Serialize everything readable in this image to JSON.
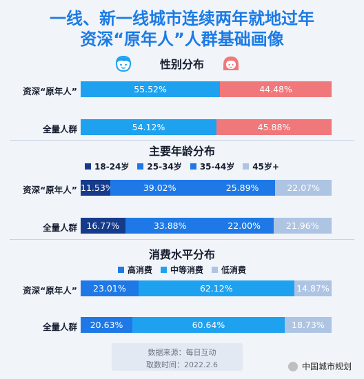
{
  "title_line1": "一线、新一线城市连续两年就地过年",
  "title_line2": "资深“原年人”人群基础画像",
  "colors": {
    "male": "#1ea2f0",
    "female": "#f0787b",
    "dark": "#163b8b",
    "mid": "#1ea2f0",
    "blue": "#1e79e6",
    "light": "#aec4e3"
  },
  "icons": [
    "boy-face-icon",
    "girl-face-icon"
  ],
  "footer": {
    "source": "数据来源：每日互动",
    "date": "取数时间：2022.2.6"
  },
  "watermark_text": "中国城市规划",
  "chart_data": [
    {
      "type": "bar",
      "stacked": true,
      "orientation": "horizontal",
      "title": "性别分布",
      "categories": [
        "资深“原年人”",
        "全量人群"
      ],
      "series": [
        {
          "values": [
            55.52,
            54.12
          ],
          "labels": [
            "55.52%",
            "54.12%"
          ],
          "color": "#1ea2f0"
        },
        {
          "values": [
            44.48,
            45.88
          ],
          "labels": [
            "44.48%",
            "45.88%"
          ],
          "color": "#f0787b"
        }
      ]
    },
    {
      "type": "bar",
      "stacked": true,
      "orientation": "horizontal",
      "title": "主要年龄分布",
      "categories": [
        "资深“原年人”",
        "全量人群"
      ],
      "legend_position": "top",
      "series": [
        {
          "name": "18-24岁",
          "values": [
            11.53,
            16.77
          ],
          "labels": [
            "11.53%",
            "16.77%"
          ],
          "color": "#163b8b"
        },
        {
          "name": "25-34岁",
          "values": [
            39.02,
            33.88
          ],
          "labels": [
            "39.02%",
            "33.88%"
          ],
          "color": "#1e79e6"
        },
        {
          "name": "35-44岁",
          "values": [
            25.89,
            22.0
          ],
          "labels": [
            "25.89%",
            "22.00%"
          ],
          "color": "#1e79e6"
        },
        {
          "name": "45岁+",
          "values": [
            22.07,
            21.96
          ],
          "labels": [
            "22.07%",
            "21.96%"
          ],
          "color": "#aec4e3"
        }
      ]
    },
    {
      "type": "bar",
      "stacked": true,
      "orientation": "horizontal",
      "title": "消费水平分布",
      "categories": [
        "资深“原年人”",
        "全量人群"
      ],
      "legend_position": "top",
      "series": [
        {
          "name": "高消费",
          "values": [
            23.01,
            20.63
          ],
          "labels": [
            "23.01%",
            "20.63%"
          ],
          "color": "#1e79e6"
        },
        {
          "name": "中等消费",
          "values": [
            62.12,
            60.64
          ],
          "labels": [
            "62.12%",
            "60.64%"
          ],
          "color": "#1ea2f0"
        },
        {
          "name": "低消费",
          "values": [
            14.87,
            18.73
          ],
          "labels": [
            "14.87%",
            "18.73%"
          ],
          "color": "#aec4e3"
        }
      ]
    }
  ]
}
